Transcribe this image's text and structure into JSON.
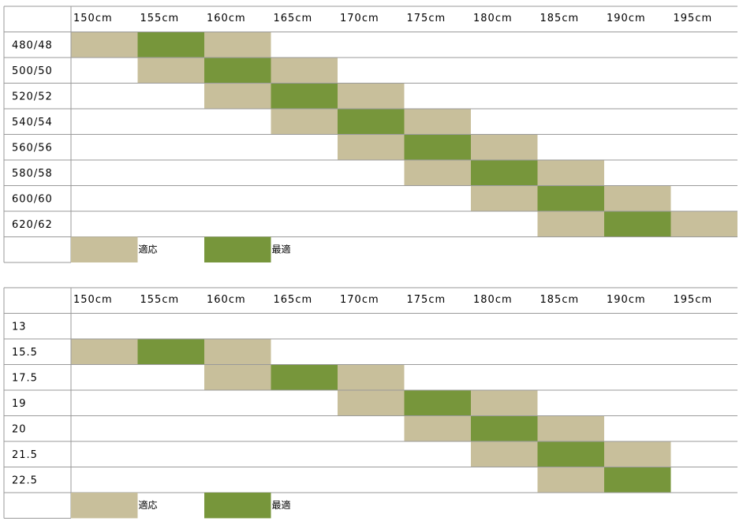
{
  "tables": [
    {
      "header": [
        "150cm",
        "155cm",
        "160cm",
        "165cm",
        "170cm",
        "175cm",
        "180cm",
        "185cm",
        "190cm",
        "195cm"
      ],
      "rows": [
        {
          "label": "480/48",
          "cells": [
            0,
            1,
            0,
            null,
            null,
            null,
            null,
            null,
            null,
            null
          ]
        },
        {
          "label": "500/50",
          "cells": [
            null,
            0,
            1,
            0,
            null,
            null,
            null,
            null,
            null,
            null
          ]
        },
        {
          "label": "520/52",
          "cells": [
            null,
            null,
            0,
            1,
            0,
            null,
            null,
            null,
            null,
            null
          ]
        },
        {
          "label": "540/54",
          "cells": [
            null,
            null,
            null,
            0,
            1,
            0,
            null,
            null,
            null,
            null
          ]
        },
        {
          "label": "560/56",
          "cells": [
            null,
            null,
            null,
            null,
            0,
            1,
            0,
            null,
            null,
            null
          ]
        },
        {
          "label": "580/58",
          "cells": [
            null,
            null,
            null,
            null,
            null,
            0,
            1,
            0,
            null,
            null
          ]
        },
        {
          "label": "600/60",
          "cells": [
            null,
            null,
            null,
            null,
            null,
            null,
            0,
            1,
            0,
            null
          ]
        },
        {
          "label": "620/62",
          "cells": [
            null,
            null,
            null,
            null,
            null,
            null,
            null,
            0,
            1,
            0
          ]
        }
      ],
      "legend": [
        {
          "label": "適応",
          "color": "#c8bf9b"
        },
        {
          "label": "最適",
          "color": "#77963b"
        }
      ]
    },
    {
      "header": [
        "150cm",
        "155cm",
        "160cm",
        "165cm",
        "170cm",
        "175cm",
        "180cm",
        "185cm",
        "190cm",
        "195cm"
      ],
      "rows": [
        {
          "label": "13",
          "cells": [
            null,
            null,
            null,
            null,
            null,
            null,
            null,
            null,
            null,
            null
          ]
        },
        {
          "label": "15.5",
          "cells": [
            0,
            1,
            0,
            null,
            null,
            null,
            null,
            null,
            null,
            null
          ]
        },
        {
          "label": "17.5",
          "cells": [
            null,
            null,
            0,
            1,
            0,
            null,
            null,
            null,
            null,
            null
          ]
        },
        {
          "label": "19",
          "cells": [
            null,
            null,
            null,
            null,
            0,
            1,
            0,
            null,
            null,
            null
          ]
        },
        {
          "label": "20",
          "cells": [
            null,
            null,
            null,
            null,
            null,
            0,
            1,
            0,
            null,
            null
          ]
        },
        {
          "label": "21.5",
          "cells": [
            null,
            null,
            null,
            null,
            null,
            null,
            0,
            1,
            0,
            null
          ]
        },
        {
          "label": "22.5",
          "cells": [
            null,
            null,
            null,
            null,
            null,
            null,
            null,
            0,
            1,
            null
          ]
        }
      ],
      "legend": [
        {
          "label": "適応",
          "color": "#c8bf9b"
        },
        {
          "label": "最適",
          "color": "#77963b"
        }
      ]
    }
  ]
}
